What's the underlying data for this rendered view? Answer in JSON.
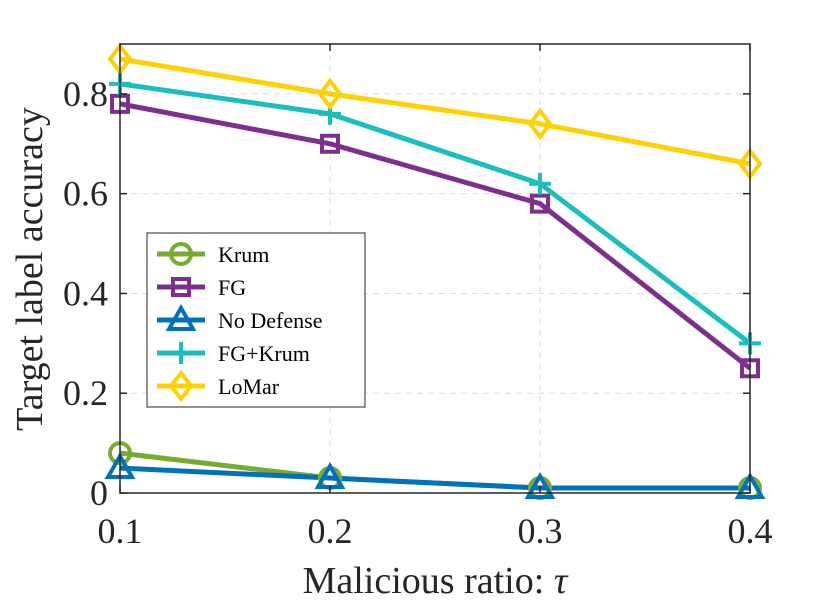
{
  "chart_data": {
    "type": "line",
    "xlabel": "Malicious ratio: ",
    "xlabel_symbol": "τ",
    "ylabel": "Target label accuracy",
    "x": [
      0.1,
      0.2,
      0.3,
      0.4
    ],
    "x_tick_labels": [
      "0.1",
      "0.2",
      "0.3",
      "0.4"
    ],
    "y_ticks": [
      0,
      0.2,
      0.4,
      0.6,
      0.8
    ],
    "y_tick_labels": [
      "0",
      "0.2",
      "0.4",
      "0.6",
      "0.8"
    ],
    "xlim": [
      0.1,
      0.4
    ],
    "ylim": [
      0,
      0.9
    ],
    "grid": true,
    "legend_position": "center-left",
    "series": [
      {
        "name": "Krum",
        "values": [
          0.08,
          0.03,
          0.01,
          0.01
        ],
        "color": "#77AC30",
        "marker": "circle"
      },
      {
        "name": "FG",
        "values": [
          0.78,
          0.7,
          0.58,
          0.25
        ],
        "color": "#7E2F8E",
        "marker": "square"
      },
      {
        "name": "No Defense",
        "values": [
          0.05,
          0.03,
          0.01,
          0.01
        ],
        "color": "#0072BD",
        "marker": "triangle"
      },
      {
        "name": "FG+Krum",
        "values": [
          0.82,
          0.76,
          0.62,
          0.3
        ],
        "color": "#1ABEBE",
        "marker": "plus"
      },
      {
        "name": "LoMar",
        "values": [
          0.87,
          0.8,
          0.74,
          0.66
        ],
        "color": "#FFD100",
        "marker": "diamond"
      }
    ]
  }
}
